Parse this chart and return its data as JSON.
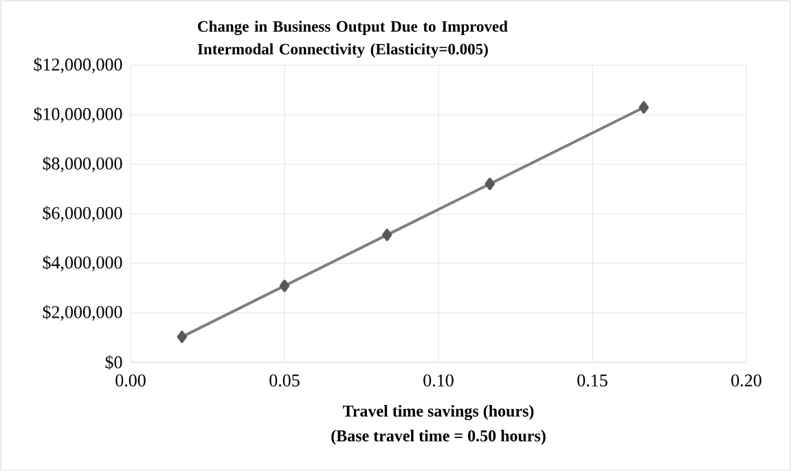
{
  "chart_data": {
    "type": "line",
    "title": "Change in Business Output Due to Improved Intermodal Connectivity (Elasticity=0.005)",
    "xlabel": "Travel time savings (hours)",
    "annotations": [
      "(Base travel time  = 0.50 hours)"
    ],
    "x": [
      0.0167,
      0.05,
      0.0833,
      0.1167,
      0.1667
    ],
    "series": [
      {
        "color": "#7f7f7f",
        "values": [
          1030000,
          3090000,
          5150000,
          7210000,
          10300000
        ]
      }
    ],
    "marker": "diamond",
    "line_style": "solid",
    "grid": true,
    "xlim": [
      0,
      0.2
    ],
    "ylim": [
      0,
      12000000
    ],
    "xticks": [
      {
        "value": 0,
        "label": "0.00"
      },
      {
        "value": 0.05,
        "label": "0.05"
      },
      {
        "value": 0.1,
        "label": "0.10"
      },
      {
        "value": 0.15,
        "label": "0.15"
      },
      {
        "value": 0.2,
        "label": "0.20"
      }
    ],
    "yticks": [
      {
        "value": 0,
        "label": "$0"
      },
      {
        "value": 2000000,
        "label": "$2,000,000"
      },
      {
        "value": 4000000,
        "label": "$4,000,000"
      },
      {
        "value": 6000000,
        "label": "$6,000,000"
      },
      {
        "value": 8000000,
        "label": "$8,000,000"
      },
      {
        "value": 10000000,
        "label": "$10,000,000"
      },
      {
        "value": 12000000,
        "label": "$12,000,000"
      }
    ]
  }
}
